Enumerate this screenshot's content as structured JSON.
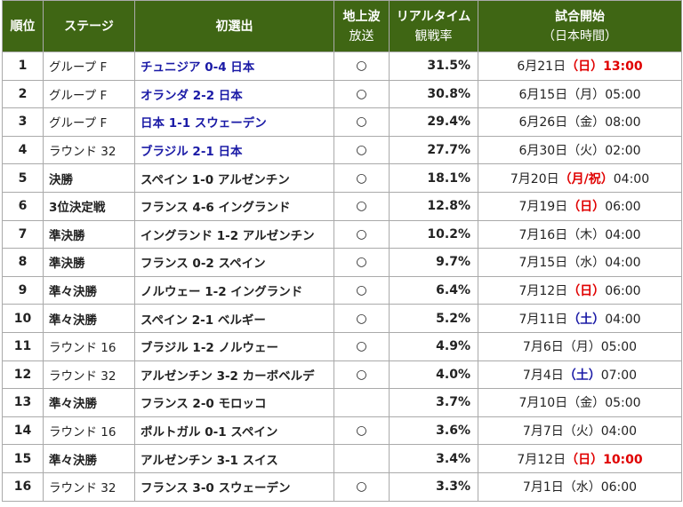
{
  "table": {
    "columns": [
      [
        "順位"
      ],
      [
        "ステージ"
      ],
      [
        "初選出"
      ],
      [
        "地上波",
        "放送"
      ],
      [
        "リアルタイム",
        "観戦率"
      ],
      [
        "試合開始",
        "（日本時間）"
      ]
    ],
    "rows": [
      {
        "rank": 1,
        "stage": "グループ F",
        "match": "チュニジア 0-4 日本",
        "match_color": "#1a1aa6",
        "broadcast": "○",
        "rating": "31.5%",
        "date": "6月21日",
        "weekday": "（日）",
        "weekday_color": "#e00000",
        "time": "13:00",
        "time_color": "#e00000"
      },
      {
        "rank": 2,
        "stage": "グループ F",
        "match": "オランダ 2-2 日本",
        "match_color": "#1a1aa6",
        "broadcast": "○",
        "rating": "30.8%",
        "date": "6月15日",
        "weekday": "（月）",
        "time": "05:00"
      },
      {
        "rank": 3,
        "stage": "グループ F",
        "match": "日本 1-1 スウェーデン",
        "match_color": "#1a1aa6",
        "broadcast": "○",
        "rating": "29.4%",
        "date": "6月26日",
        "weekday": "（金）",
        "time": "08:00"
      },
      {
        "rank": 4,
        "stage": "ラウンド 32",
        "match": "ブラジル 2-1 日本",
        "match_color": "#1a1aa6",
        "broadcast": "○",
        "rating": "27.7%",
        "date": "6月30日",
        "weekday": "（火）",
        "time": "02:00"
      },
      {
        "rank": 5,
        "stage": "決勝",
        "stage_bold": true,
        "match": "スペイン 1-0 アルゼンチン",
        "broadcast": "○",
        "rating": "18.1%",
        "date": "7月20日",
        "weekday": "（月/祝）",
        "weekday_color": "#e00000",
        "time": "04:00"
      },
      {
        "rank": 6,
        "stage": "3位決定戦",
        "stage_bold": true,
        "match": "フランス 4-6 イングランド",
        "broadcast": "○",
        "rating": "12.8%",
        "date": "7月19日",
        "weekday": "（日）",
        "weekday_color": "#e00000",
        "time": "06:00"
      },
      {
        "rank": 7,
        "stage": "準決勝",
        "stage_bold": true,
        "match": "イングランド 1-2 アルゼンチン",
        "broadcast": "○",
        "rating": "10.2%",
        "date": "7月16日",
        "weekday": "（木）",
        "time": "04:00"
      },
      {
        "rank": 8,
        "stage": "準決勝",
        "stage_bold": true,
        "match": "フランス 0-2 スペイン",
        "broadcast": "○",
        "rating": "9.7%",
        "date": "7月15日",
        "weekday": "（水）",
        "time": "04:00"
      },
      {
        "rank": 9,
        "stage": "準々決勝",
        "stage_bold": true,
        "match": "ノルウェー 1-2 イングランド",
        "broadcast": "○",
        "rating": "6.4%",
        "date": "7月12日",
        "weekday": "（日）",
        "weekday_color": "#e00000",
        "time": "06:00"
      },
      {
        "rank": 10,
        "stage": "準々決勝",
        "stage_bold": true,
        "match": "スペイン 2-1 ベルギー",
        "broadcast": "○",
        "rating": "5.2%",
        "date": "7月11日",
        "weekday": "（土）",
        "weekday_color": "#1a1aa6",
        "time": "04:00"
      },
      {
        "rank": 11,
        "stage": "ラウンド 16",
        "match": "ブラジル 1-2 ノルウェー",
        "broadcast": "○",
        "rating": "4.9%",
        "date": "7月6日",
        "weekday": "（月）",
        "time": "05:00"
      },
      {
        "rank": 12,
        "stage": "ラウンド 32",
        "match": "アルゼンチン 3-2 カーボベルデ",
        "broadcast": "○",
        "rating": "4.0%",
        "date": "7月4日",
        "weekday": "（土）",
        "weekday_color": "#1a1aa6",
        "time": "07:00"
      },
      {
        "rank": 13,
        "stage": "準々決勝",
        "stage_bold": true,
        "match": "フランス 2-0 モロッコ",
        "broadcast": null,
        "rating": "3.7%",
        "date": "7月10日",
        "weekday": "（金）",
        "time": "05:00"
      },
      {
        "rank": 14,
        "stage": "ラウンド 16",
        "match": "ポルトガル 0-1 スペイン",
        "broadcast": "○",
        "rating": "3.6%",
        "date": "7月7日",
        "weekday": "（火）",
        "time": "04:00"
      },
      {
        "rank": 15,
        "stage": "準々決勝",
        "stage_bold": true,
        "match": "アルゼンチン 3-1 スイス",
        "broadcast": null,
        "rating": "3.4%",
        "date": "7月12日",
        "weekday": "（日）",
        "weekday_color": "#e00000",
        "time": "10:00",
        "time_color": "#e00000"
      },
      {
        "rank": 16,
        "stage": "ラウンド 32",
        "match": "フランス 3-0 スウェーデン",
        "broadcast": "○",
        "rating": "3.3%",
        "date": "7月1日",
        "weekday": "（水）",
        "time": "06:00"
      }
    ]
  }
}
